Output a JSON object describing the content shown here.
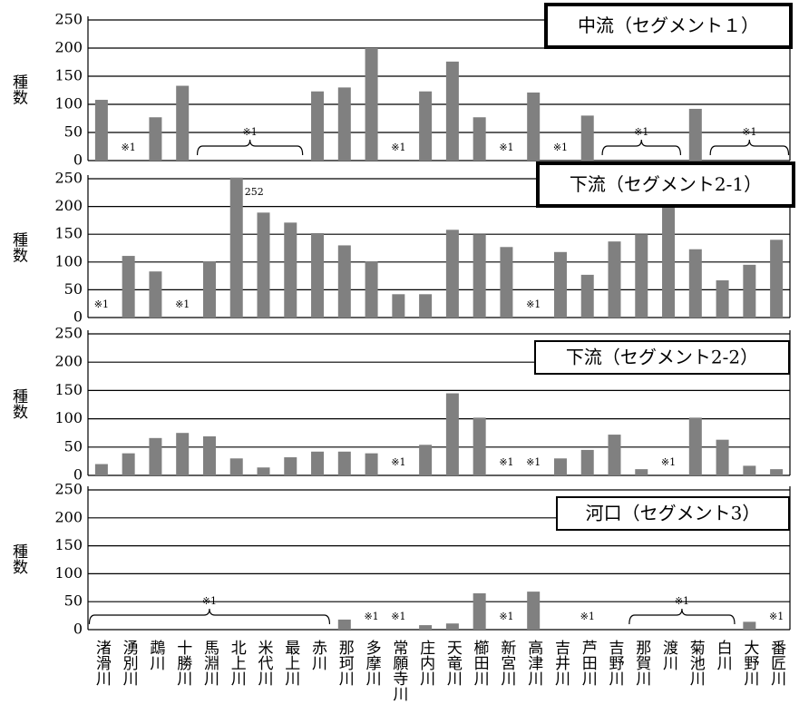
{
  "chart_data": [
    {
      "type": "bar",
      "title": "中流（セグメント１）",
      "ylabel": "種数",
      "color": "#808080",
      "grid": true,
      "ylim": [
        0,
        250
      ],
      "yticks": [
        0,
        50,
        100,
        150,
        200,
        250
      ],
      "values": [
        108,
        null,
        77,
        133,
        null,
        null,
        null,
        null,
        123,
        130,
        200,
        null,
        123,
        176,
        77,
        null,
        121,
        null,
        80,
        null,
        null,
        null,
        92,
        null,
        null,
        null
      ],
      "annotations": [
        {
          "text": "※1",
          "span": [
            "湧別川"
          ]
        },
        {
          "text": "※1",
          "span": [
            "馬淵川",
            "最上川"
          ]
        },
        {
          "text": "※1",
          "span": [
            "常願寺川"
          ]
        },
        {
          "text": "※1",
          "span": [
            "新宮川"
          ]
        },
        {
          "text": "※1",
          "span": [
            "吉井川"
          ]
        },
        {
          "text": "※1",
          "span": [
            "吉野川",
            "渡川"
          ]
        },
        {
          "text": "※1",
          "span": [
            "白川",
            "番匠川"
          ]
        }
      ]
    },
    {
      "type": "bar",
      "title": "下流（セグメント2-1）",
      "ylabel": "種数",
      "color": "#808080",
      "grid": true,
      "ylim": [
        0,
        250
      ],
      "yticks": [
        0,
        50,
        100,
        150,
        200,
        250
      ],
      "values": [
        null,
        111,
        83,
        null,
        101,
        252,
        189,
        171,
        152,
        130,
        101,
        42,
        42,
        158,
        150,
        127,
        null,
        118,
        77,
        137,
        150,
        203,
        123,
        67,
        95,
        140
      ],
      "value_labels": [
        null,
        null,
        null,
        null,
        null,
        "252",
        null,
        null,
        null,
        null,
        null,
        null,
        null,
        null,
        null,
        null,
        null,
        null,
        null,
        null,
        null,
        null,
        null,
        null,
        null,
        null
      ],
      "annotations": [
        {
          "text": "※1",
          "span": [
            "渚滑川"
          ]
        },
        {
          "text": "※1",
          "span": [
            "十勝川"
          ]
        },
        {
          "text": "※1",
          "span": [
            "高津川"
          ]
        }
      ]
    },
    {
      "type": "bar",
      "title": "下流（セグメント2-2）",
      "ylabel": "種数",
      "color": "#808080",
      "grid": true,
      "ylim": [
        0,
        250
      ],
      "yticks": [
        0,
        50,
        100,
        150,
        200,
        250
      ],
      "values": [
        20,
        39,
        66,
        75,
        69,
        30,
        14,
        32,
        42,
        42,
        39,
        null,
        54,
        145,
        102,
        null,
        null,
        30,
        45,
        72,
        11,
        null,
        102,
        63,
        17,
        11
      ],
      "annotations": [
        {
          "text": "※1",
          "span": [
            "常願寺川"
          ]
        },
        {
          "text": "※1",
          "span": [
            "新宮川"
          ]
        },
        {
          "text": "※1",
          "span": [
            "高津川"
          ]
        },
        {
          "text": "※1",
          "span": [
            "渡川"
          ]
        }
      ]
    },
    {
      "type": "bar",
      "title": "河口（セグメント3）",
      "ylabel": "種数",
      "color": "#808080",
      "grid": true,
      "ylim": [
        0,
        250
      ],
      "yticks": [
        0,
        50,
        100,
        150,
        200,
        250
      ],
      "categories": [
        "渚滑川",
        "湧別川",
        "鵡川",
        "十勝川",
        "馬淵川",
        "北上川",
        "米代川",
        "最上川",
        "赤川",
        "那珂川",
        "多摩川",
        "常願寺川",
        "庄内川",
        "天竜川",
        "櫛田川",
        "新宮川",
        "高津川",
        "吉井川",
        "芦田川",
        "吉野川",
        "那賀川",
        "渡川",
        "菊池川",
        "白川",
        "大野川",
        "番匠川"
      ],
      "values": [
        null,
        null,
        null,
        null,
        null,
        null,
        null,
        null,
        null,
        18,
        null,
        null,
        8,
        11,
        65,
        null,
        68,
        null,
        null,
        null,
        null,
        null,
        null,
        null,
        14,
        null
      ],
      "annotations": [
        {
          "text": "※1",
          "span": [
            "渚滑川",
            "赤川"
          ]
        },
        {
          "text": "※1",
          "span": [
            "多摩川"
          ]
        },
        {
          "text": "※1",
          "span": [
            "常願寺川"
          ]
        },
        {
          "text": "※1",
          "span": [
            "新宮川"
          ]
        },
        {
          "text": "※1",
          "span": [
            "芦田川"
          ]
        },
        {
          "text": "※1",
          "span": [
            "那賀川",
            "白川"
          ]
        },
        {
          "text": "※1",
          "span": [
            "番匠川"
          ]
        }
      ]
    }
  ]
}
